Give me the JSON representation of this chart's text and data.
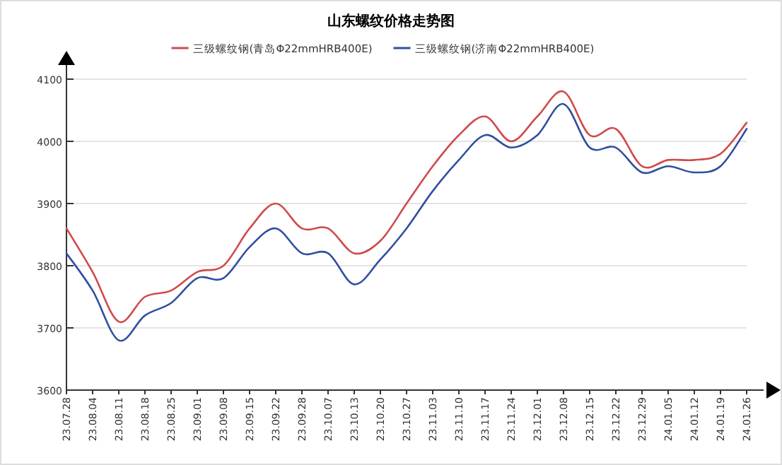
{
  "chart_data": {
    "type": "line",
    "title": "山东螺纹价格走势图",
    "categories": [
      "23.07.28",
      "23.08.04",
      "23.08.11",
      "23.08.18",
      "23.08.25",
      "23.09.01",
      "23.09.08",
      "23.09.15",
      "23.09.22",
      "23.09.28",
      "23.10.07",
      "23.10.13",
      "23.10.20",
      "23.10.27",
      "23.11.03",
      "23.11.10",
      "23.11.17",
      "23.11.24",
      "23.12.01",
      "23.12.08",
      "23.12.15",
      "23.12.22",
      "23.12.29",
      "24.01.05",
      "24.01.12",
      "24.01.19",
      "24.01.26"
    ],
    "series": [
      {
        "name": "三级螺纹钢(青岛Φ22mmHRB400E)",
        "color": "#d04a4a",
        "values": [
          3860,
          3790,
          3710,
          3750,
          3760,
          3790,
          3800,
          3860,
          3900,
          3860,
          3860,
          3820,
          3840,
          3900,
          3960,
          4010,
          4040,
          4000,
          4040,
          4080,
          4010,
          4020,
          3960,
          3970,
          3970,
          3980,
          4030
        ]
      },
      {
        "name": "三级螺纹钢(济南Φ22mmHRB400E)",
        "color": "#2f4f9f",
        "values": [
          3820,
          3760,
          3680,
          3720,
          3740,
          3780,
          3780,
          3830,
          3860,
          3820,
          3820,
          3770,
          3810,
          3860,
          3920,
          3970,
          4010,
          3990,
          4010,
          4060,
          3990,
          3990,
          3950,
          3960,
          3950,
          3960,
          4020
        ]
      }
    ],
    "ylim": [
      3600,
      4100
    ],
    "yticks": [
      3600,
      3700,
      3800,
      3900,
      4000,
      4100
    ],
    "grid": "y",
    "legend": "top"
  }
}
